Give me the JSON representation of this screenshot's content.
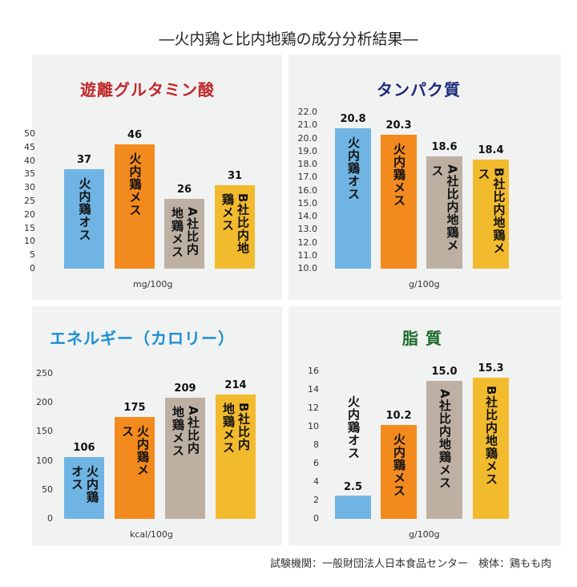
{
  "title": "―火内鶏と比内地鶏の成分分析結果―",
  "footer": "試験機関：一般財団法人日本食品センター　検体：鶏もも肉",
  "colors": {
    "bars": [
      "#6fb4e2",
      "#f28a1e",
      "#bdb0a3",
      "#f2bb2e"
    ],
    "title_red": "#c0282a",
    "title_navy": "#1c2a7a",
    "title_blue": "#1a8fd6",
    "title_green": "#1d6b2a"
  },
  "chart_data": [
    {
      "type": "bar",
      "title": "遊離グルタミン酸",
      "xlabel": "mg/100g",
      "ylabel": "",
      "ylim": [
        0,
        50
      ],
      "yticks": [
        "0",
        "5",
        "10",
        "15",
        "20",
        "25",
        "30",
        "35",
        "40",
        "45",
        "50"
      ],
      "categories": [
        "火内鶏オス",
        "火内鶏メス",
        "A社比内地鶏メス",
        "B社比内地鶏メス"
      ],
      "values": [
        37,
        46,
        26,
        31
      ],
      "value_labels": [
        "37",
        "46",
        "26",
        "31"
      ]
    },
    {
      "type": "bar",
      "title": "タンパク質",
      "xlabel": "g/100g",
      "ylabel": "",
      "ylim": [
        10,
        22
      ],
      "yticks": [
        "10.0",
        "11.0",
        "12.0",
        "13.0",
        "14.0",
        "15.0",
        "16.0",
        "17.0",
        "18.0",
        "19.0",
        "20.0",
        "21.0",
        "22.0"
      ],
      "categories": [
        "火内鶏オス",
        "火内鶏メス",
        "A社比内地鶏メス",
        "B社比内地鶏メス"
      ],
      "values": [
        20.8,
        20.3,
        18.6,
        18.4
      ],
      "value_labels": [
        "20.8",
        "20.3",
        "18.6",
        "18.4"
      ]
    },
    {
      "type": "bar",
      "title": "エネルギー（カロリー）",
      "xlabel": "kcal/100g",
      "ylabel": "",
      "ylim": [
        0,
        250
      ],
      "yticks": [
        "0",
        "50",
        "100",
        "150",
        "200",
        "250"
      ],
      "categories": [
        "火内鶏オス",
        "火内鶏メス",
        "A社比内地鶏メス",
        "B社比内地鶏メス"
      ],
      "values": [
        106,
        175,
        209,
        214
      ],
      "value_labels": [
        "106",
        "175",
        "209",
        "214"
      ]
    },
    {
      "type": "bar",
      "title": "脂 質",
      "xlabel": "g/100g",
      "ylabel": "",
      "ylim": [
        0,
        16
      ],
      "yticks": [
        "0",
        "2",
        "4",
        "6",
        "8",
        "10",
        "12",
        "14",
        "16"
      ],
      "categories": [
        "火内鶏オス",
        "火内鶏メス",
        "A社比内地鶏メス",
        "B社比内地鶏メス"
      ],
      "values": [
        2.5,
        10.2,
        15.0,
        15.3
      ],
      "value_labels": [
        "2.5",
        "10.2",
        "15.0",
        "15.3"
      ]
    }
  ]
}
